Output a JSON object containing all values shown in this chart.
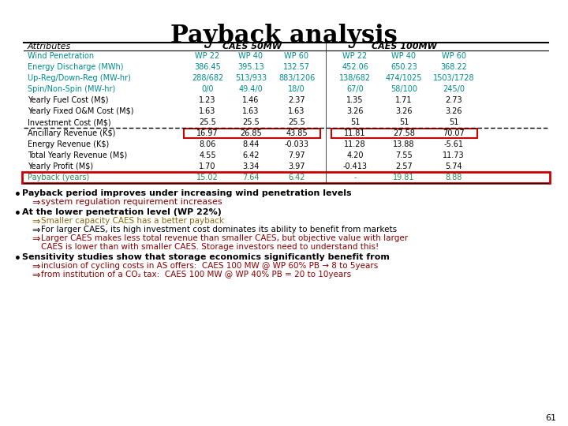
{
  "title": "Payback analysis",
  "table": {
    "rows": [
      [
        "Wind Penetration",
        "WP 22",
        "WP 40",
        "WP 60",
        "WP 22",
        "WP 40",
        "WP 60"
      ],
      [
        "Energy Discharge (MWh)",
        "386.45",
        "395.13",
        "132.57",
        "452.06",
        "650.23",
        "368.22"
      ],
      [
        "Up-Reg/Down-Reg (MW-hr)",
        "288/682",
        "513/933",
        "883/1206",
        "138/682",
        "474/1025",
        "1503/1728"
      ],
      [
        "Spin/Non-Spin (MW-hr)",
        "0/0",
        "49.4/0",
        "18/0",
        "67/0",
        "58/100",
        "245/0"
      ],
      [
        "Yearly Fuel Cost (M$)",
        "1.23",
        "1.46",
        "2.37",
        "1.35",
        "1.71",
        "2.73"
      ],
      [
        "Yearly Fixed O&M Cost (M$)",
        "1.63",
        "1.63",
        "1.63",
        "3.26",
        "3.26",
        "3.26"
      ],
      [
        "Investment Cost (M$)",
        "25.5",
        "25.5",
        "25.5",
        "51",
        "51",
        "51"
      ],
      [
        "Ancillary Revenue (K$)",
        "16.97",
        "26.85",
        "43.85",
        "11.81",
        "27.58",
        "70.07"
      ],
      [
        "Energy Revenue (K$)",
        "8.06",
        "8.44",
        "-0.033",
        "11.28",
        "13.88",
        "-5.61"
      ],
      [
        "Total Yearly Revenue (M$)",
        "4.55",
        "6.42",
        "7.97",
        "4.20",
        "7.55",
        "11.73"
      ],
      [
        "Yearly Profit (M$)",
        "1.70",
        "3.34",
        "3.97",
        "-0.413",
        "2.57",
        "5.74"
      ],
      [
        "Payback (years)",
        "15.02",
        "7.64",
        "6.42",
        "-",
        "19.81",
        "8.88"
      ]
    ]
  },
  "bg_color": "#FFFFFF",
  "title_color": "#000000",
  "cyan_color": "#008B8B",
  "red_box_color": "#CC0000",
  "green_color": "#2E8B57",
  "olive_color": "#8B6914",
  "dark_red": "#8B0000"
}
